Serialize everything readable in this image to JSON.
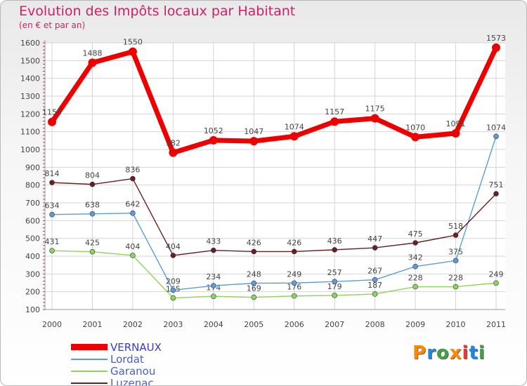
{
  "header": {
    "title": "Evolution des Impôts locaux par Habitant",
    "subtitle": "(en € et par an)"
  },
  "logo": {
    "letters": [
      "P",
      "r",
      "o",
      "x",
      "i",
      "t",
      "i"
    ],
    "colors": [
      "#ff8800",
      "#1e88e5",
      "#43a047",
      "#ff8800",
      "#e53935",
      "#1e88e5",
      "#43a047"
    ]
  },
  "chart_data": {
    "type": "line",
    "title": "Evolution des Impôts locaux par Habitant",
    "subtitle": "(en € et par an)",
    "x": [
      "2000",
      "2001",
      "2002",
      "2003",
      "2004",
      "2005",
      "2006",
      "2007",
      "2008",
      "2009",
      "2010",
      "2011"
    ],
    "ylim": [
      100,
      1600
    ],
    "yticks": [
      100,
      200,
      300,
      400,
      500,
      600,
      700,
      800,
      900,
      1000,
      1100,
      1200,
      1300,
      1400,
      1500,
      1600
    ],
    "grid": true,
    "legend_position": "bottom-left",
    "series": [
      {
        "name": "VERNAUX",
        "color": "#ee0000",
        "values": [
          1155,
          1488,
          1550,
          982,
          1052,
          1047,
          1074,
          1157,
          1175,
          1070,
          1091,
          1573
        ]
      },
      {
        "name": "Lordat",
        "color": "#5d9dd6",
        "values": [
          634,
          638,
          642,
          209,
          234,
          248,
          249,
          257,
          267,
          342,
          375,
          1074
        ]
      },
      {
        "name": "Garanou",
        "color": "#8ed455",
        "values": [
          431,
          425,
          404,
          165,
          174,
          169,
          176,
          179,
          187,
          228,
          228,
          249
        ]
      },
      {
        "name": "Luzenac",
        "color": "#6b1f1f",
        "values": [
          814,
          804,
          836,
          404,
          433,
          426,
          426,
          436,
          447,
          475,
          518,
          751
        ]
      }
    ]
  }
}
